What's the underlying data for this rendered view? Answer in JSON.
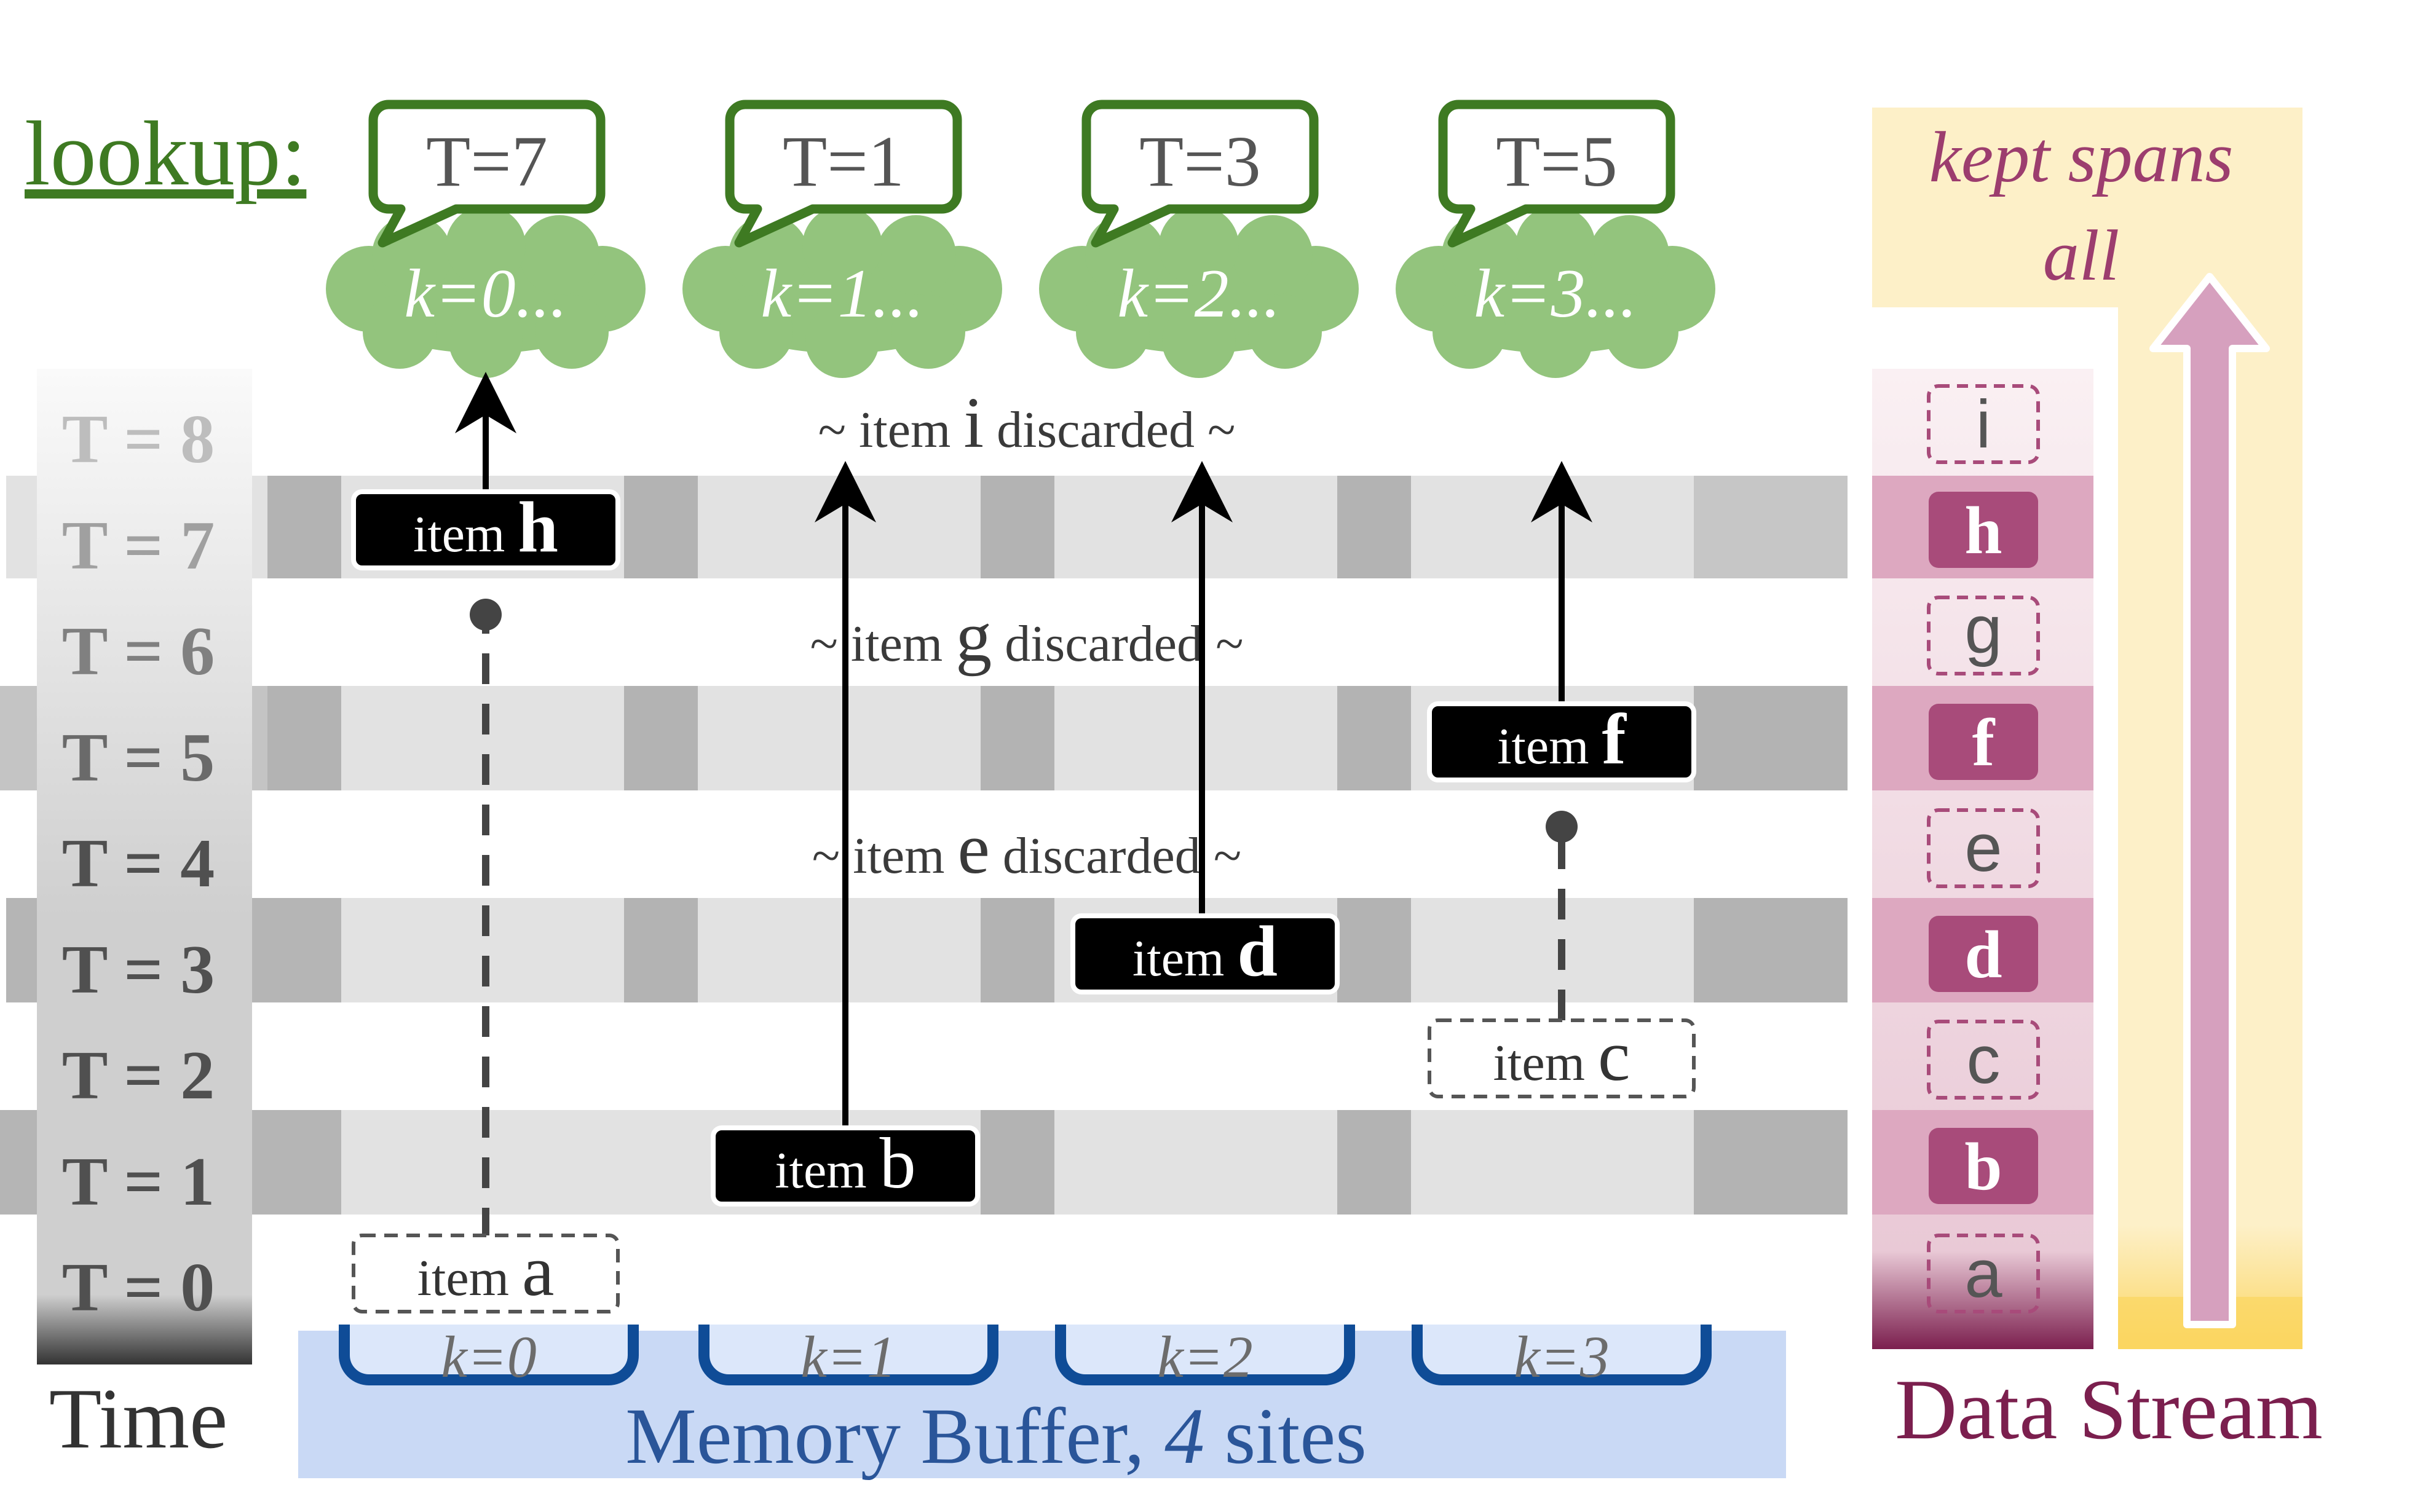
{
  "lookup": {
    "title": "lookup:",
    "queries": [
      {
        "t": "T=7",
        "k": "k=0..."
      },
      {
        "t": "T=1",
        "k": "k=1..."
      },
      {
        "t": "T=3",
        "k": "k=2..."
      },
      {
        "t": "T=5",
        "k": "k=3..."
      }
    ]
  },
  "time_axis": {
    "label": "Time",
    "rows": [
      "T = 0",
      "T = 1",
      "T = 2",
      "T = 3",
      "T = 4",
      "T = 5",
      "T = 6",
      "T = 7",
      "T = 8"
    ]
  },
  "discarded": [
    {
      "prefix": "~ item ",
      "letter": "i",
      "suffix": " discarded ~"
    },
    {
      "prefix": "~ item ",
      "letter": "g",
      "suffix": " discarded ~"
    },
    {
      "prefix": "~ item ",
      "letter": "e",
      "suffix": " discarded ~"
    }
  ],
  "items": {
    "a": {
      "word": "item",
      "letter": "a",
      "style": "dashed"
    },
    "b": {
      "word": "item",
      "letter": "b",
      "style": "solid"
    },
    "c": {
      "word": "item",
      "letter": "c",
      "style": "dashed"
    },
    "d": {
      "word": "item",
      "letter": "d",
      "style": "solid"
    },
    "f": {
      "word": "item",
      "letter": "f",
      "style": "solid"
    },
    "h": {
      "word": "item",
      "letter": "h",
      "style": "solid"
    }
  },
  "memory_buffer": {
    "label_prefix": "Memory Buffer, ",
    "label_count": "4",
    "label_suffix": " sites",
    "sites": [
      "k=0",
      "k=1",
      "k=2",
      "k=3"
    ]
  },
  "data_stream": {
    "label": "Data Stream",
    "kept_line1": "kept spans",
    "kept_line2": "all",
    "letters": [
      "a",
      "b",
      "c",
      "d",
      "e",
      "f",
      "g",
      "h",
      "i"
    ]
  },
  "colors": {
    "green": "#3e7a22",
    "cloud": "#93c47d",
    "blue": "#2a5599",
    "maroon": "#7b1f4e",
    "kept": "#9c3d6e",
    "pink_box": "#a84b7a"
  }
}
